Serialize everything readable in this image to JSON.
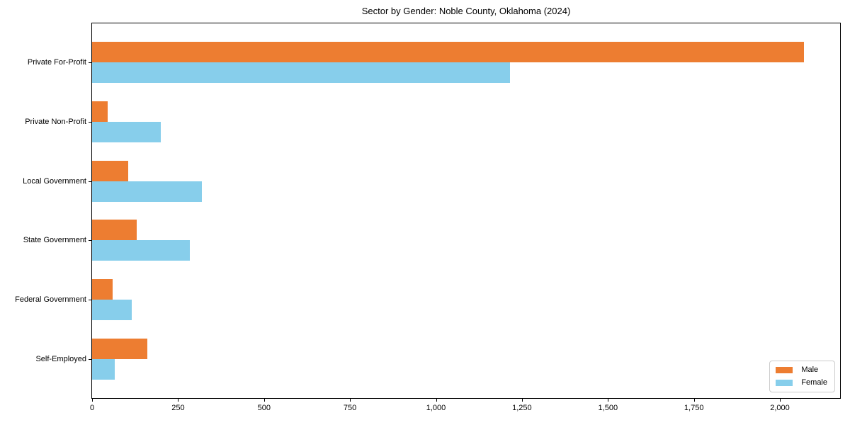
{
  "title": "Sector by Gender: Noble County, Oklahoma (2024)",
  "chart_data": {
    "type": "bar",
    "orientation": "horizontal",
    "title": "Sector by Gender: Noble County, Oklahoma (2024)",
    "categories": [
      "Private For-Profit",
      "Private Non-Profit",
      "Local Government",
      "State Government",
      "Federal Government",
      "Self-Employed"
    ],
    "series": [
      {
        "name": "Male",
        "color": "#ed7d31",
        "values": [
          2070,
          45,
          105,
          130,
          60,
          160
        ]
      },
      {
        "name": "Female",
        "color": "#87ceeb",
        "values": [
          1215,
          200,
          320,
          285,
          115,
          65
        ]
      }
    ],
    "xlabel": "",
    "ylabel": "",
    "xlim": [
      0,
      2175
    ],
    "xticks": [
      0,
      250,
      500,
      750,
      1000,
      1250,
      1500,
      1750,
      2000
    ],
    "xtick_labels": [
      "0",
      "250",
      "500",
      "750",
      "1,000",
      "1,250",
      "1,500",
      "1,750",
      "2,000"
    ],
    "grid": false,
    "legend": {
      "position": "lower right"
    }
  }
}
